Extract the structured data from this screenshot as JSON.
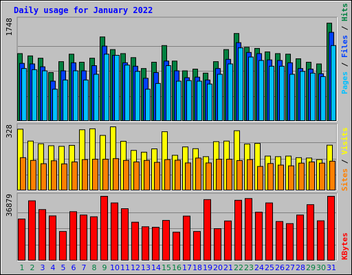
{
  "colors": {
    "background": "#c0c0c0",
    "title": "#0000ff",
    "pages": "#00c0ff",
    "files": "#0040ff",
    "hits": "#008040",
    "visits": "#ffff00",
    "sites": "#ff8000",
    "kbytes": "#ff0000",
    "weekend_day": "#008040",
    "weekday": "#0000ff",
    "axis_label": "#000000"
  },
  "chart_data": [
    {
      "type": "bar",
      "title": "Daily usage for January 2022",
      "categories": [
        "1",
        "2",
        "3",
        "4",
        "5",
        "6",
        "7",
        "8",
        "9",
        "10",
        "11",
        "12",
        "13",
        "14",
        "15",
        "16",
        "17",
        "18",
        "19",
        "20",
        "21",
        "22",
        "23",
        "24",
        "25",
        "26",
        "27",
        "28",
        "29",
        "30",
        "31"
      ],
      "weekend_days": [
        "1",
        "2",
        "8",
        "9",
        "15",
        "16",
        "22",
        "23",
        "29",
        "30"
      ],
      "ymax_label": "1748",
      "ylim": [
        0,
        1748
      ],
      "ylabel_parts": [
        "Pages",
        "Files",
        "Hits"
      ],
      "series": [
        {
          "name": "Hits",
          "values": [
            1180,
            1140,
            1100,
            850,
            1040,
            1170,
            1030,
            1100,
            1470,
            1250,
            1180,
            1110,
            920,
            1030,
            1320,
            1050,
            880,
            910,
            840,
            1040,
            1250,
            1530,
            1290,
            1270,
            1210,
            1180,
            1170,
            1090,
            1030,
            1000,
            1710
          ]
        },
        {
          "name": "Files",
          "values": [
            1010,
            1000,
            950,
            700,
            880,
            1020,
            880,
            970,
            1310,
            1150,
            1020,
            960,
            750,
            850,
            1050,
            880,
            760,
            770,
            720,
            920,
            1080,
            1370,
            1200,
            1180,
            1070,
            1060,
            1020,
            920,
            910,
            830,
            1550
          ]
        },
        {
          "name": "Pages",
          "values": [
            920,
            900,
            880,
            560,
            720,
            880,
            720,
            820,
            1170,
            1150,
            980,
            870,
            560,
            660,
            970,
            700,
            710,
            700,
            650,
            820,
            1000,
            1280,
            1120,
            1060,
            960,
            960,
            820,
            870,
            840,
            780,
            1320
          ]
        }
      ]
    },
    {
      "type": "bar",
      "categories": [
        "1",
        "2",
        "3",
        "4",
        "5",
        "6",
        "7",
        "8",
        "9",
        "10",
        "11",
        "12",
        "13",
        "14",
        "15",
        "16",
        "17",
        "18",
        "19",
        "20",
        "21",
        "22",
        "23",
        "24",
        "25",
        "26",
        "27",
        "28",
        "29",
        "30",
        "31"
      ],
      "ymax_label": "328",
      "ylim": [
        0,
        328
      ],
      "ylabel_parts": [
        "Sites",
        "Visits"
      ],
      "series": [
        {
          "name": "Visits",
          "values": [
            316,
            255,
            241,
            231,
            228,
            233,
            313,
            318,
            284,
            328,
            254,
            207,
            198,
            215,
            303,
            182,
            225,
            216,
            175,
            252,
            255,
            308,
            240,
            243,
            178,
            175,
            178,
            170,
            168,
            160,
            234
          ]
        },
        {
          "name": "Sites",
          "values": [
            170,
            156,
            139,
            154,
            138,
            148,
            160,
            162,
            162,
            165,
            156,
            148,
            156,
            146,
            160,
            157,
            143,
            168,
            143,
            162,
            162,
            155,
            160,
            125,
            140,
            132,
            128,
            142,
            148,
            142,
            152
          ]
        }
      ]
    },
    {
      "type": "bar",
      "categories": [
        "1",
        "2",
        "3",
        "4",
        "5",
        "6",
        "7",
        "8",
        "9",
        "10",
        "11",
        "12",
        "13",
        "14",
        "15",
        "16",
        "17",
        "18",
        "19",
        "20",
        "21",
        "22",
        "23",
        "24",
        "25",
        "26",
        "27",
        "28",
        "29",
        "30",
        "31"
      ],
      "ymax_label": "36879",
      "ylim": [
        0,
        36879
      ],
      "ylabel_parts": [
        "KBytes"
      ],
      "series": [
        {
          "name": "KBytes",
          "values": [
            23900,
            34300,
            29300,
            25700,
            16800,
            28100,
            26200,
            25200,
            36879,
            33100,
            29800,
            22100,
            19500,
            19200,
            23100,
            16400,
            25600,
            16800,
            35000,
            18400,
            22800,
            34600,
            35600,
            27800,
            33100,
            22500,
            21300,
            26200,
            32100,
            22900,
            36879
          ]
        }
      ]
    }
  ]
}
